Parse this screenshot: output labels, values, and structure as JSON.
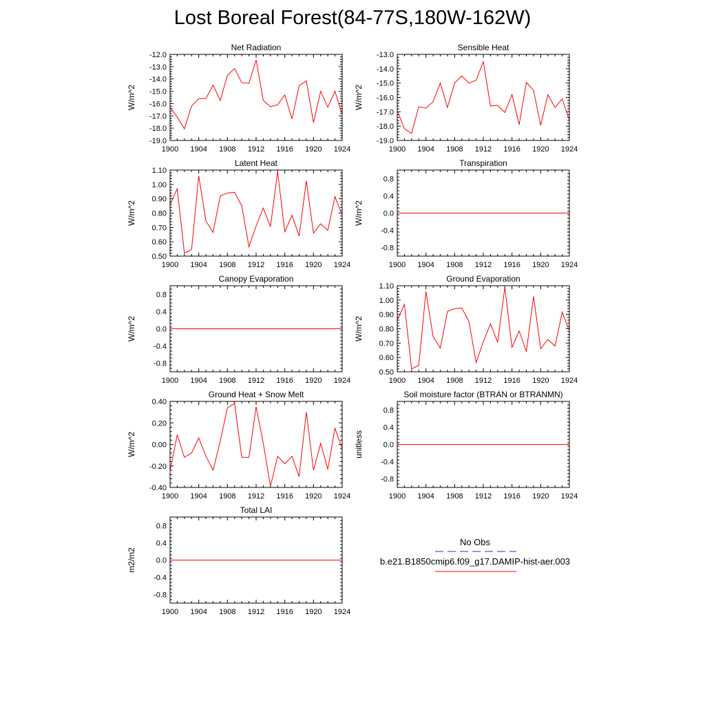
{
  "title": "Lost Boreal Forest(84-77S,180W-162W)",
  "legend": {
    "items": [
      {
        "label": "No Obs",
        "color": "#2b2bd6",
        "style": "dashed"
      },
      {
        "label": "b.e21.B1850cmip6.f09_g17.DAMIP-hist-aer.003",
        "color": "#ff0000",
        "style": "solid"
      }
    ]
  },
  "chart_data": [
    {
      "type": "line",
      "title": "Net Radiation",
      "ylabel": "W/m^2",
      "xlim": [
        1900,
        1924
      ],
      "xticks": [
        "1900",
        "1904",
        "1908",
        "1912",
        "1916",
        "1920",
        "1924"
      ],
      "ylim": [
        -19,
        -12
      ],
      "yticks": [
        {
          "v": -12,
          "t": "-12.0"
        },
        {
          "v": -13,
          "t": "-13.0"
        },
        {
          "v": -14,
          "t": "-14.0"
        },
        {
          "v": -15,
          "t": "-15.0"
        },
        {
          "v": -16,
          "t": "-16.0"
        },
        {
          "v": -17,
          "t": "-17.0"
        },
        {
          "v": -18,
          "t": "-18.0"
        },
        {
          "v": -19,
          "t": "-19.0"
        }
      ],
      "series": [
        {
          "color": "#ff0000",
          "y": [
            -16.3,
            -17.1,
            -18.05,
            -16.2,
            -15.6,
            -15.6,
            -14.5,
            -15.75,
            -13.7,
            -13.15,
            -14.3,
            -14.35,
            -12.45,
            -15.75,
            -16.25,
            -16.1,
            -15.3,
            -17.25,
            -14.55,
            -14.15,
            -17.55,
            -15.0,
            -16.3,
            -15.0,
            -16.9
          ]
        }
      ]
    },
    {
      "type": "line",
      "title": "Sensible Heat",
      "ylabel": "W/m^2",
      "xlim": [
        1900,
        1924
      ],
      "xticks": [
        "1900",
        "1904",
        "1908",
        "1912",
        "1916",
        "1920",
        "1924"
      ],
      "ylim": [
        -19,
        -13
      ],
      "yticks": [
        {
          "v": -13,
          "t": "-13.0"
        },
        {
          "v": -14,
          "t": "-14.0"
        },
        {
          "v": -15,
          "t": "-15.0"
        },
        {
          "v": -16,
          "t": "-16.0"
        },
        {
          "v": -17,
          "t": "-17.0"
        },
        {
          "v": -18,
          "t": "-18.0"
        },
        {
          "v": -19,
          "t": "-19.0"
        }
      ],
      "series": [
        {
          "color": "#ff0000",
          "y": [
            -16.9,
            -18.2,
            -18.5,
            -16.65,
            -16.75,
            -16.3,
            -15.0,
            -16.7,
            -15.0,
            -14.5,
            -15.0,
            -14.8,
            -13.5,
            -16.6,
            -16.55,
            -17.05,
            -15.8,
            -17.9,
            -14.95,
            -15.5,
            -17.95,
            -15.8,
            -16.7,
            -16.1,
            -17.6
          ]
        }
      ]
    },
    {
      "type": "line",
      "title": "Latent Heat",
      "ylabel": "W/m^2",
      "xlim": [
        1900,
        1924
      ],
      "xticks": [
        "1900",
        "1904",
        "1908",
        "1912",
        "1916",
        "1920",
        "1924"
      ],
      "ylim": [
        0.5,
        1.1
      ],
      "yticks": [
        {
          "v": 1.1,
          "t": "1.10"
        },
        {
          "v": 1.0,
          "t": "1.00"
        },
        {
          "v": 0.9,
          "t": "0.90"
        },
        {
          "v": 0.8,
          "t": "0.80"
        },
        {
          "v": 0.7,
          "t": "0.70"
        },
        {
          "v": 0.6,
          "t": "0.60"
        },
        {
          "v": 0.5,
          "t": "0.50"
        }
      ],
      "series": [
        {
          "color": "#ff0000",
          "y": [
            0.86,
            0.97,
            0.52,
            0.545,
            1.06,
            0.745,
            0.665,
            0.92,
            0.94,
            0.945,
            0.85,
            0.565,
            0.71,
            0.835,
            0.705,
            1.09,
            0.67,
            0.785,
            0.64,
            1.025,
            0.66,
            0.725,
            0.68,
            0.915,
            0.785
          ]
        }
      ]
    },
    {
      "type": "line",
      "title": "Transpiration",
      "ylabel": "W/m^2",
      "xlim": [
        1900,
        1924
      ],
      "xticks": [
        "1900",
        "1904",
        "1908",
        "1912",
        "1916",
        "1920",
        "1924"
      ],
      "ylim": [
        -1.0,
        1.0
      ],
      "yticks": [
        {
          "v": 0.8,
          "t": "0.8"
        },
        {
          "v": 0.4,
          "t": "0.4"
        },
        {
          "v": 0.0,
          "t": "0.0"
        },
        {
          "v": -0.4,
          "t": "-0.4"
        },
        {
          "v": -0.8,
          "t": "-0.8"
        }
      ],
      "series": [
        {
          "color": "#ff0000",
          "y": [
            0,
            0,
            0,
            0,
            0,
            0,
            0,
            0,
            0,
            0,
            0,
            0,
            0,
            0,
            0,
            0,
            0,
            0,
            0,
            0,
            0,
            0,
            0,
            0,
            0
          ]
        }
      ]
    },
    {
      "type": "line",
      "title": "Canopy Evaporation",
      "ylabel": "W/m^2",
      "xlim": [
        1900,
        1924
      ],
      "xticks": [
        "1900",
        "1904",
        "1908",
        "1912",
        "1916",
        "1920",
        "1924"
      ],
      "ylim": [
        -1.0,
        1.0
      ],
      "yticks": [
        {
          "v": 0.8,
          "t": "0.8"
        },
        {
          "v": 0.4,
          "t": "0.4"
        },
        {
          "v": 0.0,
          "t": "0.0"
        },
        {
          "v": -0.4,
          "t": "-0.4"
        },
        {
          "v": -0.8,
          "t": "-0.8"
        }
      ],
      "series": [
        {
          "color": "#ff0000",
          "y": [
            0,
            0,
            0,
            0,
            0,
            0,
            0,
            0,
            0,
            0,
            0,
            0,
            0,
            0,
            0,
            0,
            0,
            0,
            0,
            0,
            0,
            0,
            0,
            0,
            0
          ]
        }
      ]
    },
    {
      "type": "line",
      "title": "Ground Evaporation",
      "ylabel": "W/m^2",
      "xlim": [
        1900,
        1924
      ],
      "xticks": [
        "1900",
        "1904",
        "1908",
        "1912",
        "1916",
        "1920",
        "1924"
      ],
      "ylim": [
        0.5,
        1.1
      ],
      "yticks": [
        {
          "v": 1.1,
          "t": "1.10"
        },
        {
          "v": 1.0,
          "t": "1.00"
        },
        {
          "v": 0.9,
          "t": "0.90"
        },
        {
          "v": 0.8,
          "t": "0.80"
        },
        {
          "v": 0.7,
          "t": "0.70"
        },
        {
          "v": 0.6,
          "t": "0.60"
        },
        {
          "v": 0.5,
          "t": "0.50"
        }
      ],
      "series": [
        {
          "color": "#ff0000",
          "y": [
            0.86,
            0.97,
            0.52,
            0.545,
            1.06,
            0.745,
            0.665,
            0.92,
            0.94,
            0.945,
            0.85,
            0.565,
            0.71,
            0.835,
            0.705,
            1.09,
            0.67,
            0.785,
            0.64,
            1.025,
            0.66,
            0.725,
            0.68,
            0.915,
            0.785
          ]
        }
      ]
    },
    {
      "type": "line",
      "title": "Ground Heat + Snow Melt",
      "ylabel": "W/m^2",
      "xlim": [
        1900,
        1924
      ],
      "xticks": [
        "1900",
        "1904",
        "1908",
        "1912",
        "1916",
        "1920",
        "1924"
      ],
      "ylim": [
        -0.4,
        0.4
      ],
      "yticks": [
        {
          "v": 0.4,
          "t": "0.40"
        },
        {
          "v": 0.2,
          "t": "0.20"
        },
        {
          "v": 0.0,
          "t": "0.00"
        },
        {
          "v": -0.2,
          "t": "-0.20"
        },
        {
          "v": -0.4,
          "t": "-0.40"
        }
      ],
      "series": [
        {
          "color": "#ff0000",
          "y": [
            -0.25,
            0.09,
            -0.12,
            -0.08,
            0.06,
            -0.11,
            -0.24,
            0.03,
            0.34,
            0.38,
            -0.12,
            -0.12,
            0.35,
            0.01,
            -0.39,
            -0.11,
            -0.18,
            -0.11,
            -0.3,
            0.3,
            -0.24,
            0.01,
            -0.23,
            0.15,
            -0.04
          ]
        }
      ]
    },
    {
      "type": "line",
      "title": "Soil moisture factor (BTRAN or BTRANMN)",
      "ylabel": "unitless",
      "xlim": [
        1900,
        1924
      ],
      "xticks": [
        "1900",
        "1904",
        "1908",
        "1912",
        "1916",
        "1920",
        "1924"
      ],
      "ylim": [
        -1.0,
        1.0
      ],
      "yticks": [
        {
          "v": 0.8,
          "t": "0.8"
        },
        {
          "v": 0.4,
          "t": "0.4"
        },
        {
          "v": 0.0,
          "t": "0.0"
        },
        {
          "v": -0.4,
          "t": "-0.4"
        },
        {
          "v": -0.8,
          "t": "-0.8"
        }
      ],
      "series": [
        {
          "color": "#ff0000",
          "y": [
            0,
            0,
            0,
            0,
            0,
            0,
            0,
            0,
            0,
            0,
            0,
            0,
            0,
            0,
            0,
            0,
            0,
            0,
            0,
            0,
            0,
            0,
            0,
            0,
            0
          ]
        }
      ]
    },
    {
      "type": "line",
      "title": "Total LAI",
      "ylabel": "m2/m2",
      "xlim": [
        1900,
        1924
      ],
      "xticks": [
        "1900",
        "1904",
        "1908",
        "1912",
        "1916",
        "1920",
        "1924"
      ],
      "ylim": [
        -1.0,
        1.0
      ],
      "yticks": [
        {
          "v": 0.8,
          "t": "0.8"
        },
        {
          "v": 0.4,
          "t": "0.4"
        },
        {
          "v": 0.0,
          "t": "0.0"
        },
        {
          "v": -0.4,
          "t": "-0.4"
        },
        {
          "v": -0.8,
          "t": "-0.8"
        }
      ],
      "series": [
        {
          "color": "#ff0000",
          "y": [
            0,
            0,
            0,
            0,
            0,
            0,
            0,
            0,
            0,
            0,
            0,
            0,
            0,
            0,
            0,
            0,
            0,
            0,
            0,
            0,
            0,
            0,
            0,
            0,
            0
          ]
        }
      ]
    }
  ]
}
